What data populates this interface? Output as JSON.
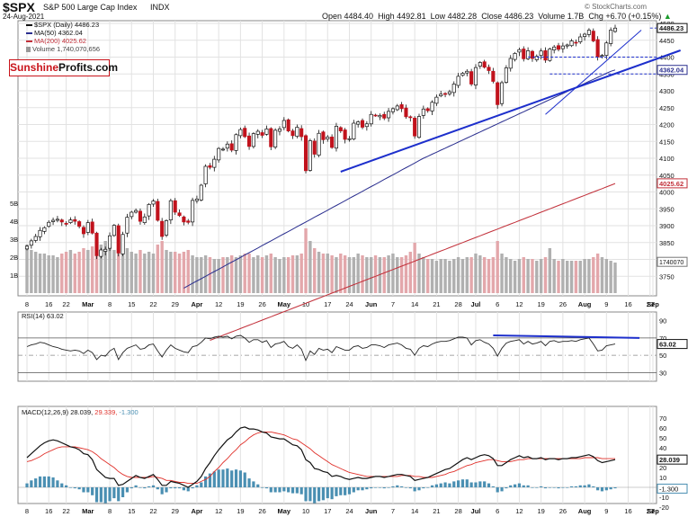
{
  "header": {
    "symbol": "$SPX",
    "name": "S&P 500 Large Cap Index",
    "exchange": "INDX",
    "date": "24-Aug-2021",
    "open": "Open 4484.40",
    "high": "High 4492.81",
    "low": "Low 4482.28",
    "close": "Close 4486.23",
    "volume": "Volume 1.7B",
    "change": "Chg +6.70 (+0.15%)",
    "change_arrow": "▲",
    "watermark": "© StockCharts.com"
  },
  "logo": {
    "part1": "Sunshine",
    "part2": "Profits",
    "part3": ".com"
  },
  "legend": {
    "price": "$SPX (Daily) 4486.23",
    "ma50": "MA(50) 4362.04",
    "ma200": "MA(200) 4025.62",
    "volume": "Volume 1,740,070,656"
  },
  "colors": {
    "up_candle": "#ffffff",
    "down_candle": "#c1121c",
    "ma50": "#2b2f8f",
    "ma200": "#c2303a",
    "trendline": "#1d2fcc",
    "rsi_line": "#222222",
    "macd_line": "#111111",
    "signal_line": "#e0302a",
    "histogram": "#4a8fb2",
    "volume_up": "#b0b0b0",
    "volume_down": "#e3a7ab"
  },
  "chart_data": [
    {
      "type": "candlestick",
      "title": "$SPX S&P 500 Large Cap Index INDX (Daily)",
      "x_tick_labels": [
        "8",
        "16",
        "22",
        "Mar",
        "8",
        "15",
        "22",
        "29",
        "Apr",
        "12",
        "19",
        "26",
        "May",
        "10",
        "17",
        "24",
        "Jun",
        "7",
        "14",
        "21",
        "28",
        "Jul",
        "6",
        "12",
        "19",
        "26",
        "Aug",
        "9",
        "16",
        "23",
        "Sep",
        "7"
      ],
      "ylim": [
        3700,
        4500
      ],
      "y_ticks": [
        3750,
        3800,
        3850,
        3900,
        3950,
        4000,
        4050,
        4100,
        4150,
        4200,
        4250,
        4300,
        4350,
        4400,
        4450,
        4500
      ],
      "closes": [
        3839,
        3855,
        3868,
        3886,
        3894,
        3910,
        3916,
        3919,
        3911,
        3906,
        3917,
        3913,
        3898,
        3876,
        3909,
        3878,
        3811,
        3828,
        3830,
        3870,
        3901,
        3819,
        3874,
        3925,
        3940,
        3945,
        3913,
        3926,
        3963,
        3973,
        3916,
        3868,
        3915,
        3974,
        3940,
        3930,
        3911,
        3910,
        3975,
        3979,
        4020,
        4076,
        4073,
        4097,
        4129,
        4127,
        4142,
        4124,
        4170,
        4185,
        4164,
        4135,
        4173,
        4180,
        4168,
        4187,
        4134,
        4183,
        4187,
        4212,
        4181,
        4167,
        4192,
        4164,
        4063,
        4152,
        4112,
        4174,
        4155,
        4163,
        4132,
        4195,
        4181,
        4156,
        4158,
        4204,
        4208,
        4192,
        4202,
        4230,
        4227,
        4227,
        4219,
        4239,
        4247,
        4255,
        4247,
        4223,
        4221,
        4166,
        4224,
        4246,
        4241,
        4266,
        4281,
        4290,
        4291,
        4297,
        4320,
        4343,
        4352,
        4358,
        4320,
        4369,
        4384,
        4370,
        4360,
        4328,
        4259,
        4324,
        4368,
        4396,
        4411,
        4422,
        4395,
        4419,
        4396,
        4402,
        4418,
        4391,
        4424,
        4430,
        4423,
        4433,
        4436,
        4448,
        4442,
        4460,
        4468,
        4480,
        4448,
        4400,
        4405,
        4442,
        4480,
        4486
      ],
      "ma50": [
        3715,
        3722,
        3729,
        3736,
        3743,
        3750,
        3757,
        3764,
        3771,
        3778,
        3785,
        3792,
        3799,
        3806,
        3813,
        3820,
        3827,
        3834,
        3841,
        3848,
        3855,
        3862,
        3869,
        3876,
        3883,
        3890,
        3897,
        3904,
        3911,
        3918,
        3925,
        3932,
        3939,
        3946,
        3953,
        3960,
        3967,
        3974,
        3981,
        3988,
        3995,
        4002,
        4009,
        4016,
        4023,
        4030,
        4037,
        4044,
        4051,
        4058,
        4065,
        4072,
        4079,
        4086,
        4093,
        4100,
        4106,
        4112,
        4118,
        4124,
        4130,
        4136,
        4142,
        4148,
        4154,
        4160,
        4166,
        4172,
        4178,
        4184,
        4190,
        4196,
        4202,
        4208,
        4214,
        4220,
        4226,
        4232,
        4238,
        4244,
        4250,
        4256,
        4262,
        4268,
        4274,
        4280,
        4286,
        4292,
        4298,
        4304,
        4310,
        4316,
        4322,
        4328,
        4334,
        4340,
        4346,
        4352,
        4358,
        4362
      ],
      "ma200": [
        3560,
        3565,
        3570,
        3575,
        3580,
        3585,
        3590,
        3595,
        3600,
        3605,
        3610,
        3615,
        3620,
        3625,
        3630,
        3635,
        3640,
        3645,
        3650,
        3655,
        3660,
        3665,
        3670,
        3675,
        3680,
        3685,
        3690,
        3695,
        3700,
        3705,
        3710,
        3715,
        3720,
        3725,
        3730,
        3735,
        3740,
        3745,
        3750,
        3755,
        3760,
        3765,
        3770,
        3775,
        3780,
        3785,
        3790,
        3795,
        3800,
        3805,
        3810,
        3815,
        3820,
        3825,
        3830,
        3835,
        3840,
        3845,
        3850,
        3855,
        3860,
        3865,
        3870,
        3875,
        3880,
        3885,
        3890,
        3895,
        3900,
        3905,
        3910,
        3915,
        3920,
        3925,
        3930,
        3935,
        3940,
        3945,
        3950,
        3955,
        3960,
        3965,
        3970,
        3975,
        3980,
        3985,
        3990,
        3995,
        4000,
        4005,
        4010,
        4015,
        4020,
        4025
      ],
      "last_price_label": "4486.23",
      "ma50_label": "4362.04",
      "ma200_label": "4025.62",
      "volume_label": "1740070",
      "volume_axis_labels": [
        "5B",
        "4B",
        "3B",
        "2B",
        "1B"
      ],
      "volumes_billions": [
        2.7,
        2.4,
        2.3,
        2.2,
        2.2,
        2.1,
        2.1,
        2.0,
        2.2,
        2.3,
        2.4,
        2.2,
        2.3,
        2.5,
        2.4,
        2.6,
        3.0,
        2.7,
        2.9,
        2.5,
        2.4,
        3.0,
        2.6,
        2.5,
        2.3,
        2.2,
        2.4,
        2.2,
        2.3,
        2.2,
        2.7,
        2.9,
        2.4,
        2.3,
        2.3,
        2.2,
        2.3,
        2.4,
        2.1,
        2.0,
        2.0,
        2.1,
        2.0,
        1.9,
        1.9,
        2.0,
        2.0,
        2.1,
        2.0,
        2.1,
        2.2,
        2.2,
        2.0,
        2.1,
        2.0,
        2.1,
        2.2,
        2.0,
        1.9,
        2.0,
        2.0,
        2.1,
        2.1,
        2.2,
        3.6,
        2.9,
        2.5,
        2.3,
        2.2,
        2.2,
        2.1,
        2.0,
        2.2,
        2.1,
        2.0,
        2.0,
        2.2,
        2.1,
        2.0,
        2.0,
        2.1,
        2.0,
        2.0,
        2.1,
        2.2,
        2.0,
        2.0,
        2.1,
        2.3,
        2.8,
        2.2,
        2.0,
        1.9,
        1.9,
        1.8,
        1.9,
        1.9,
        1.8,
        1.9,
        2.0,
        1.9,
        2.0,
        2.0,
        2.2,
        2.1,
        2.0,
        1.9,
        2.0,
        2.9,
        2.2,
        2.0,
        1.9,
        1.8,
        1.9,
        2.0,
        1.9,
        1.9,
        1.8,
        1.9,
        2.0,
        2.5,
        1.9,
        1.8,
        1.9,
        1.8,
        1.8,
        1.8,
        1.8,
        1.9,
        1.9,
        2.0,
        2.2,
        2.0,
        1.9,
        1.8,
        1.7
      ],
      "trendlines": [
        {
          "from": [
            "May 12",
            4060
          ],
          "to": [
            "Aug 26",
            4420
          ]
        },
        {
          "from": [
            "Jul 19",
            4230
          ],
          "to": [
            "Aug 16",
            4480
          ]
        }
      ],
      "horizontal_levels": [
        4486.23,
        4400,
        4350
      ]
    },
    {
      "type": "line",
      "title": "RSI(14) 63.02",
      "label": "RSI(14)",
      "value": "63.02",
      "ylim": [
        20,
        100
      ],
      "y_ticks": [
        90,
        70,
        50,
        30
      ],
      "reference_lines": [
        70,
        50,
        30
      ],
      "values": [
        60,
        62,
        63,
        65,
        64,
        62,
        60,
        59,
        57,
        56,
        55,
        56,
        55,
        52,
        56,
        53,
        45,
        50,
        49,
        55,
        58,
        45,
        53,
        58,
        60,
        62,
        57,
        58,
        62,
        63,
        55,
        48,
        56,
        62,
        58,
        56,
        54,
        53,
        60,
        61,
        65,
        70,
        69,
        71,
        72,
        71,
        72,
        69,
        72,
        73,
        70,
        65,
        68,
        68,
        65,
        67,
        59,
        63,
        64,
        66,
        60,
        58,
        62,
        57,
        44,
        55,
        51,
        58,
        56,
        57,
        53,
        60,
        58,
        56,
        56,
        60,
        61,
        58,
        59,
        62,
        62,
        61,
        59,
        62,
        63,
        64,
        62,
        58,
        57,
        50,
        58,
        61,
        60,
        63,
        65,
        66,
        66,
        67,
        69,
        71,
        71,
        70,
        62,
        67,
        68,
        65,
        63,
        58,
        49,
        58,
        64,
        66,
        67,
        68,
        63,
        66,
        63,
        64,
        66,
        61,
        66,
        67,
        65,
        66,
        66,
        67,
        66,
        68,
        69,
        70,
        63,
        55,
        56,
        61,
        62,
        63
      ],
      "divergence_line": {
        "from": [
          "Jul 9",
          73
        ],
        "to": [
          "Sep 3",
          70
        ]
      }
    },
    {
      "type": "line",
      "title": "MACD(12,26,9) 28.039, 29.339, -1.300",
      "macd_label": "MACD(12,26,9)",
      "macd_value": "28.039",
      "signal_value": "29.339",
      "histogram_value": "-1.300",
      "ylim": [
        -30,
        75
      ],
      "y_ticks": [
        70,
        60,
        50,
        40,
        30,
        20,
        10,
        0,
        -10,
        -20
      ],
      "macd": [
        30,
        34,
        38,
        42,
        45,
        47,
        48,
        47,
        45,
        43,
        41,
        40,
        38,
        34,
        33,
        28,
        18,
        14,
        10,
        9,
        9,
        2,
        3,
        6,
        9,
        12,
        10,
        9,
        11,
        13,
        8,
        2,
        2,
        6,
        5,
        4,
        2,
        0,
        3,
        6,
        11,
        19,
        25,
        32,
        38,
        43,
        48,
        51,
        56,
        60,
        61,
        59,
        59,
        58,
        56,
        55,
        51,
        50,
        49,
        49,
        46,
        43,
        42,
        38,
        28,
        25,
        19,
        18,
        16,
        15,
        11,
        12,
        11,
        9,
        8,
        9,
        10,
        9,
        9,
        10,
        11,
        11,
        10,
        11,
        12,
        13,
        13,
        12,
        11,
        7,
        8,
        9,
        10,
        12,
        14,
        16,
        18,
        19,
        22,
        25,
        28,
        30,
        28,
        30,
        32,
        33,
        32,
        29,
        22,
        22,
        25,
        28,
        30,
        32,
        30,
        31,
        29,
        29,
        30,
        28,
        29,
        29,
        28,
        29,
        29,
        30,
        30,
        31,
        32,
        33,
        31,
        27,
        25,
        26,
        27,
        28
      ],
      "signal": [
        26,
        27,
        29,
        31,
        34,
        36,
        38,
        40,
        41,
        41,
        41,
        41,
        40,
        39,
        38,
        36,
        33,
        29,
        26,
        23,
        20,
        16,
        13,
        11,
        10,
        10,
        10,
        10,
        10,
        11,
        10,
        9,
        7,
        7,
        6,
        5,
        5,
        4,
        4,
        4,
        6,
        8,
        11,
        16,
        20,
        25,
        29,
        34,
        38,
        43,
        46,
        50,
        53,
        55,
        56,
        56,
        56,
        55,
        54,
        53,
        51,
        49,
        48,
        45,
        42,
        39,
        35,
        32,
        29,
        26,
        23,
        21,
        19,
        17,
        15,
        14,
        13,
        12,
        11,
        11,
        11,
        11,
        11,
        11,
        11,
        11,
        12,
        12,
        12,
        11,
        11,
        10,
        10,
        10,
        11,
        12,
        13,
        15,
        16,
        18,
        20,
        22,
        23,
        25,
        26,
        27,
        28,
        28,
        27,
        26,
        26,
        26,
        27,
        28,
        28,
        29,
        29,
        29,
        29,
        29,
        29,
        29,
        29,
        29,
        29,
        29,
        29,
        29,
        30,
        30,
        30,
        30,
        29,
        29,
        29,
        29
      ],
      "histogram": [
        4,
        7,
        9,
        11,
        11,
        11,
        10,
        7,
        4,
        2,
        0,
        -1,
        -2,
        -5,
        -5,
        -8,
        -15,
        -15,
        -16,
        -14,
        -11,
        -14,
        -10,
        -5,
        -1,
        2,
        0,
        -1,
        1,
        2,
        -2,
        -7,
        -5,
        -1,
        -1,
        -1,
        -3,
        -4,
        -1,
        2,
        5,
        11,
        14,
        16,
        18,
        18,
        19,
        17,
        18,
        17,
        15,
        9,
        6,
        3,
        0,
        -1,
        -5,
        -5,
        -5,
        -4,
        -5,
        -6,
        -6,
        -7,
        -14,
        -14,
        -16,
        -14,
        -13,
        -11,
        -12,
        -9,
        -8,
        -8,
        -7,
        -5,
        -3,
        -3,
        -2,
        -1,
        0,
        0,
        -1,
        0,
        1,
        2,
        1,
        0,
        -1,
        -4,
        -3,
        -1,
        0,
        2,
        3,
        4,
        5,
        4,
        6,
        7,
        8,
        8,
        5,
        5,
        6,
        6,
        4,
        1,
        -5,
        -4,
        -1,
        2,
        3,
        4,
        2,
        2,
        0,
        0,
        1,
        -1,
        0,
        0,
        -1,
        0,
        0,
        1,
        1,
        2,
        2,
        3,
        1,
        -3,
        -4,
        -3,
        -2,
        -1
      ]
    }
  ]
}
